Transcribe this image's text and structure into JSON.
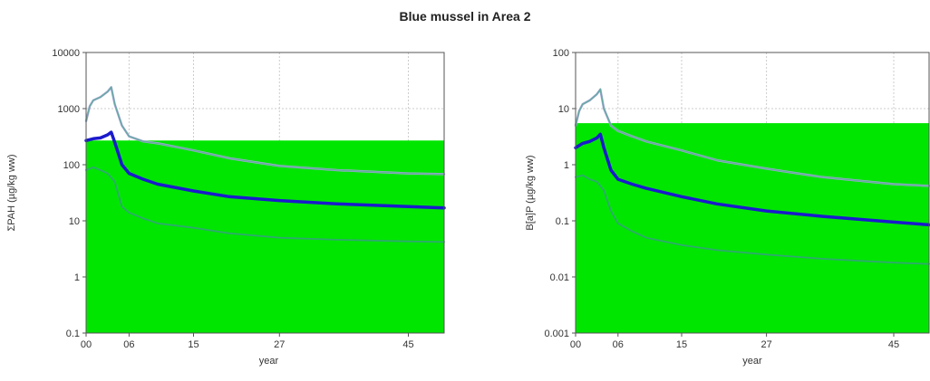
{
  "title": "Blue mussel in Area 2",
  "colors": {
    "threshold_fill": "#00e600",
    "central": "#1a1acc",
    "upper": "#aaaadd",
    "band": "#2eaa6e",
    "grid": "#cccccc"
  },
  "chart_data": [
    {
      "type": "line",
      "ylabel": "ΣPAH (µg/kg ww)",
      "xlabel": "year",
      "y_scale": "log",
      "ylim": [
        0.1,
        10000
      ],
      "xlim": [
        2000,
        2050
      ],
      "xticks": [
        {
          "value": 2000,
          "label": "00"
        },
        {
          "value": 2006,
          "label": "06"
        },
        {
          "value": 2015,
          "label": "15"
        },
        {
          "value": 2027,
          "label": "27"
        },
        {
          "value": 2045,
          "label": "45"
        }
      ],
      "yticks": [
        {
          "value": 0.1,
          "label": "0.1"
        },
        {
          "value": 1,
          "label": "1"
        },
        {
          "value": 10,
          "label": "10"
        },
        {
          "value": 100,
          "label": "100"
        },
        {
          "value": 1000,
          "label": "1000"
        },
        {
          "value": 10000,
          "label": "10000"
        }
      ],
      "threshold": 270,
      "grid": true,
      "series": [
        {
          "role": "upper",
          "x": [
            2000,
            2000.5,
            2001,
            2002,
            2003,
            2003.5,
            2004,
            2005,
            2006,
            2008,
            2010,
            2015,
            2020,
            2027,
            2035,
            2045,
            2050
          ],
          "y": [
            600,
            1100,
            1400,
            1600,
            2000,
            2400,
            1200,
            500,
            320,
            260,
            240,
            180,
            130,
            95,
            80,
            70,
            68
          ]
        },
        {
          "role": "central",
          "x": [
            2000,
            2001,
            2002,
            2003,
            2003.5,
            2004,
            2005,
            2006,
            2008,
            2010,
            2015,
            2020,
            2027,
            2035,
            2045,
            2050
          ],
          "y": [
            270,
            290,
            300,
            340,
            380,
            250,
            100,
            70,
            55,
            45,
            34,
            27,
            23,
            20,
            18,
            17
          ]
        },
        {
          "role": "lower",
          "x": [
            2000,
            2001,
            2002,
            2003,
            2004,
            2005,
            2006,
            2008,
            2010,
            2015,
            2020,
            2027,
            2035,
            2045,
            2050
          ],
          "y": [
            80,
            90,
            80,
            70,
            50,
            18,
            14,
            11,
            9,
            7.5,
            6,
            5,
            4.6,
            4.3,
            4.2
          ]
        }
      ]
    },
    {
      "type": "line",
      "ylabel": "B[a]P (µg/kg ww)",
      "xlabel": "year",
      "y_scale": "log",
      "ylim": [
        0.001,
        100
      ],
      "xlim": [
        2000,
        2050
      ],
      "xticks": [
        {
          "value": 2000,
          "label": "00"
        },
        {
          "value": 2006,
          "label": "06"
        },
        {
          "value": 2015,
          "label": "15"
        },
        {
          "value": 2027,
          "label": "27"
        },
        {
          "value": 2045,
          "label": "45"
        }
      ],
      "yticks": [
        {
          "value": 0.001,
          "label": "0.001"
        },
        {
          "value": 0.01,
          "label": "0.01"
        },
        {
          "value": 0.1,
          "label": "0.1"
        },
        {
          "value": 1,
          "label": "1"
        },
        {
          "value": 10,
          "label": "10"
        },
        {
          "value": 100,
          "label": "100"
        }
      ],
      "threshold": 5.5,
      "grid": true,
      "series": [
        {
          "role": "upper",
          "x": [
            2000,
            2000.5,
            2001,
            2002,
            2003,
            2003.5,
            2004,
            2005,
            2006,
            2008,
            2010,
            2015,
            2020,
            2027,
            2035,
            2045,
            2050
          ],
          "y": [
            5,
            9,
            12,
            14,
            18,
            22,
            10,
            5,
            4,
            3.2,
            2.6,
            1.8,
            1.2,
            0.85,
            0.6,
            0.45,
            0.42
          ]
        },
        {
          "role": "central",
          "x": [
            2000,
            2001,
            2002,
            2003,
            2003.5,
            2004,
            2005,
            2006,
            2008,
            2010,
            2015,
            2020,
            2027,
            2035,
            2045,
            2050
          ],
          "y": [
            2,
            2.4,
            2.6,
            3,
            3.5,
            2,
            0.8,
            0.55,
            0.45,
            0.38,
            0.27,
            0.2,
            0.15,
            0.12,
            0.095,
            0.085
          ]
        },
        {
          "role": "lower",
          "x": [
            2000,
            2001,
            2002,
            2003,
            2004,
            2005,
            2006,
            2008,
            2010,
            2015,
            2020,
            2027,
            2035,
            2045,
            2050
          ],
          "y": [
            0.6,
            0.65,
            0.55,
            0.5,
            0.35,
            0.15,
            0.09,
            0.065,
            0.05,
            0.037,
            0.03,
            0.025,
            0.021,
            0.018,
            0.017
          ]
        }
      ]
    }
  ]
}
